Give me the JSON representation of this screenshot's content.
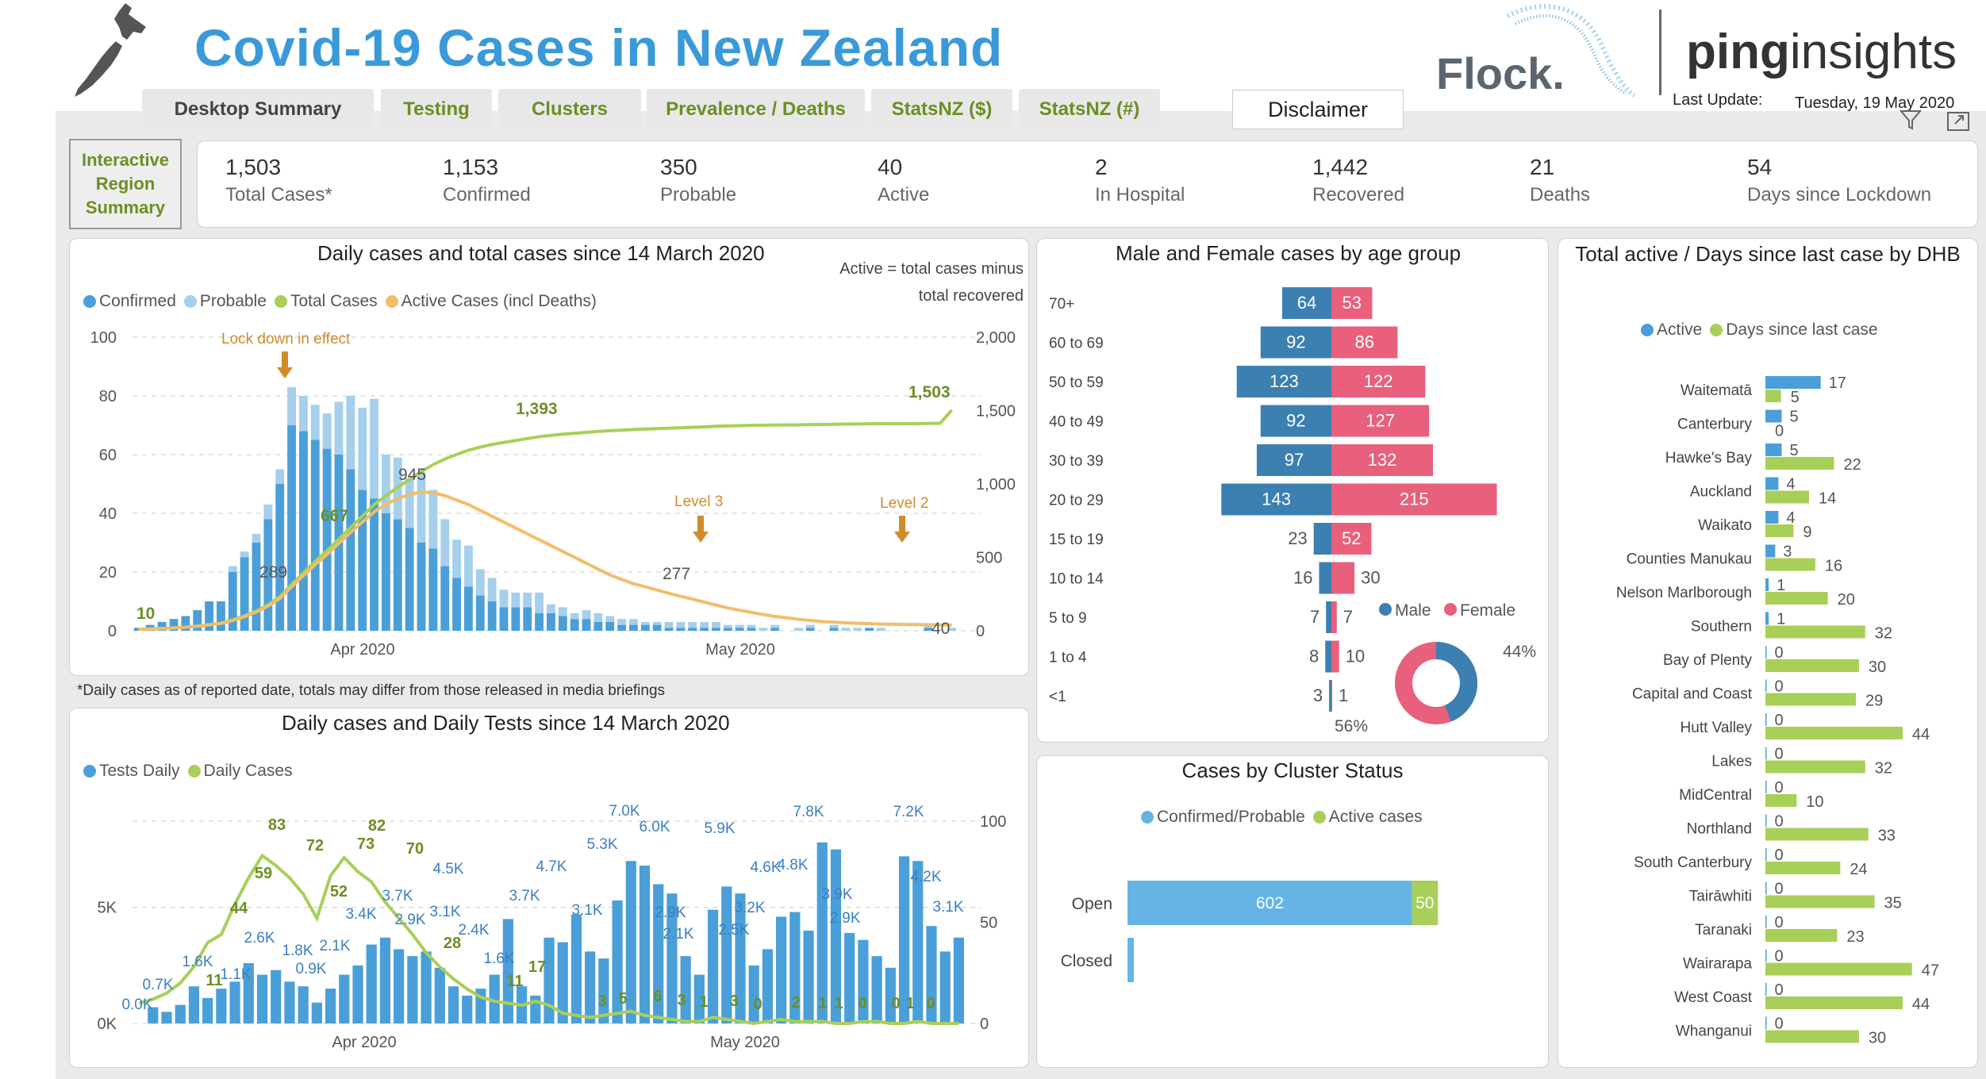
{
  "header": {
    "title": "Covid-19 Cases in New Zealand",
    "brand1": "Flock.",
    "brand2a": "ping",
    "brand2b": "insights",
    "last_update_label": "Last Update:",
    "last_update_value": "Tuesday, 19 May 2020"
  },
  "tabs": [
    {
      "label": "Desktop Summary"
    },
    {
      "label": "Testing"
    },
    {
      "label": "Clusters"
    },
    {
      "label": "Prevalence / Deaths"
    },
    {
      "label": "StatsNZ ($)"
    },
    {
      "label": "StatsNZ (#)"
    }
  ],
  "disclaimer_label": "Disclaimer",
  "interactive_region": {
    "line1": "Interactive",
    "line2": "Region",
    "line3": "Summary"
  },
  "kpis": [
    {
      "value": "1,503",
      "label": "Total Cases*"
    },
    {
      "value": "1,153",
      "label": "Confirmed"
    },
    {
      "value": "350",
      "label": "Probable"
    },
    {
      "value": "40",
      "label": "Active"
    },
    {
      "value": "2",
      "label": "In Hospital"
    },
    {
      "value": "1,442",
      "label": "Recovered"
    },
    {
      "value": "21",
      "label": "Deaths"
    },
    {
      "value": "54",
      "label": "Days since Lockdown"
    }
  ],
  "colors": {
    "confirmed": "#4a9fd8",
    "probable": "#a6cfec",
    "total": "#a8cf58",
    "active": "#f2bd6b",
    "male": "#3c7fb1",
    "female": "#e8607c",
    "annotation": "#d08b2a"
  },
  "chart_data": [
    {
      "type": "bar",
      "id": "daily_total",
      "title": "Daily cases and total cases since 14 March 2020",
      "note": "Active = total cases minus total recovered",
      "footnote": "*Daily cases as of reported date, totals may differ from those released in media briefings",
      "legend": [
        "Confirmed",
        "Probable",
        "Total Cases",
        "Active Cases (incl Deaths)"
      ],
      "x_ticks": [
        "Apr 2020",
        "May 2020"
      ],
      "y_left_ticks": [
        "100",
        "80",
        "60",
        "40",
        "20",
        "0"
      ],
      "y_right_ticks": [
        "2,000",
        "1,500",
        "1,000",
        "500",
        "0"
      ],
      "ylim_left": [
        0,
        100
      ],
      "ylim_right": [
        0,
        2000
      ],
      "annotations": [
        "Lock down in effect",
        "Level 3",
        "Level 2"
      ],
      "data_labels": {
        "total_start": "10",
        "total_289": "289",
        "total_667": "667",
        "active_945": "945",
        "total_1393": "1,393",
        "total_1503": "1,503",
        "active_277": "277",
        "active_40": "40"
      },
      "confirmed": [
        1,
        2,
        3,
        4,
        5,
        7,
        10,
        10,
        20,
        25,
        30,
        38,
        50,
        70,
        68,
        65,
        62,
        60,
        55,
        48,
        45,
        40,
        38,
        35,
        30,
        28,
        22,
        18,
        15,
        12,
        10,
        8,
        8,
        8,
        6,
        6,
        5,
        4,
        4,
        3,
        3,
        2,
        2,
        2,
        2,
        1,
        1,
        1,
        1,
        1,
        1,
        1,
        1,
        0,
        1,
        0,
        0,
        1,
        0,
        1,
        0,
        0,
        1,
        0,
        0,
        0,
        0,
        1,
        0,
        0
      ],
      "probable": [
        0,
        0,
        0,
        0,
        0,
        0,
        0,
        0,
        2,
        2,
        3,
        5,
        5,
        13,
        12,
        12,
        12,
        18,
        25,
        28,
        34,
        20,
        21,
        17,
        24,
        20,
        16,
        13,
        14,
        9,
        8,
        6,
        5,
        5,
        7,
        3,
        3,
        2,
        3,
        3,
        2,
        2,
        2,
        1,
        1,
        2,
        2,
        2,
        2,
        2,
        1,
        1,
        1,
        1,
        1,
        0,
        1,
        1,
        0,
        1,
        1,
        1,
        0,
        1,
        0,
        0,
        0,
        1,
        0,
        1
      ],
      "total_cumulative": [
        10,
        12,
        15,
        19,
        24,
        31,
        41,
        52,
        74,
        101,
        134,
        177,
        232,
        315,
        395,
        472,
        546,
        624,
        704,
        780,
        859,
        919,
        978,
        1030,
        1084,
        1132,
        1170,
        1201,
        1230,
        1251,
        1269,
        1283,
        1296,
        1309,
        1322,
        1331,
        1339,
        1345,
        1352,
        1358,
        1363,
        1367,
        1371,
        1374,
        1377,
        1380,
        1383,
        1386,
        1389,
        1393,
        1395,
        1397,
        1399,
        1400,
        1402,
        1402,
        1403,
        1405,
        1405,
        1407,
        1408,
        1409,
        1410,
        1411,
        1411,
        1411,
        1411,
        1413,
        1413,
        1503
      ],
      "active": [
        10,
        12,
        15,
        19,
        24,
        31,
        41,
        50,
        70,
        95,
        127,
        168,
        220,
        300,
        376,
        450,
        520,
        595,
        670,
        740,
        810,
        862,
        900,
        929,
        945,
        940,
        920,
        890,
        860,
        820,
        780,
        740,
        700,
        660,
        620,
        580,
        540,
        500,
        460,
        420,
        380,
        350,
        320,
        300,
        277,
        255,
        235,
        215,
        195,
        175,
        155,
        140,
        125,
        110,
        98,
        88,
        78,
        70,
        63,
        58,
        54,
        51,
        48,
        46,
        44,
        43,
        42,
        41,
        40,
        40
      ]
    },
    {
      "type": "bar",
      "id": "age_sex",
      "title": "Male and Female cases by age group",
      "legend": [
        "Male",
        "Female"
      ],
      "categories": [
        "70+",
        "60 to 69",
        "50 to 59",
        "40 to 49",
        "30 to 39",
        "20 to 29",
        "15 to 19",
        "10 to 14",
        "5 to 9",
        "1 to 4",
        "<1"
      ],
      "male": [
        64,
        92,
        123,
        92,
        97,
        143,
        23,
        16,
        7,
        8,
        3
      ],
      "female": [
        53,
        86,
        122,
        127,
        132,
        215,
        52,
        30,
        7,
        10,
        1
      ],
      "donut": {
        "male_pct": "44%",
        "female_pct": "56%",
        "male": 44,
        "female": 56
      }
    },
    {
      "type": "bar",
      "id": "dhb",
      "title": "Total active / Days since last case by DHB",
      "legend": [
        "Active",
        "Days since last case"
      ],
      "categories": [
        "Waitematā",
        "Canterbury",
        "Hawke's Bay",
        "Auckland",
        "Waikato",
        "Counties Manukau",
        "Nelson Marlborough",
        "Southern",
        "Bay of Plenty",
        "Capital and Coast",
        "Hutt Valley",
        "Lakes",
        "MidCentral",
        "Northland",
        "South Canterbury",
        "Tairāwhiti",
        "Taranaki",
        "Wairarapa",
        "West Coast",
        "Whanganui"
      ],
      "active": [
        17,
        5,
        5,
        4,
        4,
        3,
        1,
        1,
        0,
        0,
        0,
        0,
        0,
        0,
        0,
        0,
        0,
        0,
        0,
        0
      ],
      "days": [
        5,
        0,
        22,
        14,
        9,
        16,
        20,
        32,
        30,
        29,
        44,
        32,
        10,
        33,
        24,
        35,
        23,
        47,
        44,
        30
      ]
    },
    {
      "type": "bar",
      "id": "tests",
      "title": "Daily cases and Daily Tests since 14 March 2020",
      "legend": [
        "Tests Daily",
        "Daily Cases"
      ],
      "x_ticks": [
        "Apr 2020",
        "May 2020"
      ],
      "y_left_ticks": [
        "5K",
        "0K"
      ],
      "y_right_ticks": [
        "100",
        "50",
        "0"
      ],
      "test_labels": [
        "0.0K",
        "0.7K",
        "1.6K",
        "1.1K",
        "2.6K",
        "1.8K",
        "0.9K",
        "2.1K",
        "3.4K",
        "3.7K",
        "2.9K",
        "3.1K",
        "2.4K",
        "4.5K",
        "1.6K",
        "3.7K",
        "4.7K",
        "3.1K",
        "5.3K",
        "7.0K",
        "6.0K",
        "2.9K",
        "2.1K",
        "5.9K",
        "2.5K",
        "3.2K",
        "4.6K",
        "4.8K",
        "7.8K",
        "3.9K",
        "2.9K",
        "7.2K",
        "4.2K",
        "3.1K"
      ],
      "case_labels": [
        "83",
        "72",
        "73",
        "82",
        "70",
        "59",
        "52",
        "44",
        "28",
        "11",
        "17",
        "11",
        "3",
        "5",
        "6",
        "3",
        "1",
        "3",
        "0",
        "2",
        "1",
        "1",
        "0",
        "0",
        "1",
        "0"
      ],
      "tests": [
        0.0,
        0.7,
        0.5,
        0.8,
        1.6,
        1.1,
        1.5,
        1.8,
        2.6,
        2.1,
        2.3,
        1.8,
        1.6,
        0.9,
        1.5,
        2.1,
        2.5,
        3.4,
        3.7,
        3.2,
        2.9,
        3.1,
        2.4,
        1.6,
        1.2,
        1.5,
        2.1,
        4.5,
        1.6,
        1.2,
        3.7,
        3.5,
        4.7,
        3.1,
        2.8,
        5.3,
        7.0,
        6.8,
        6.0,
        5.6,
        2.9,
        2.1,
        4.9,
        5.9,
        5.6,
        2.5,
        3.2,
        4.6,
        4.8,
        4.0,
        7.8,
        7.5,
        3.9,
        3.6,
        2.9,
        2.4,
        7.2,
        7.0,
        4.2,
        3.1,
        3.7
      ],
      "cases": [
        10,
        12,
        15,
        20,
        28,
        40,
        44,
        59,
        72,
        83,
        78,
        72,
        64,
        52,
        73,
        82,
        75,
        70,
        60,
        52,
        44,
        35,
        28,
        22,
        17,
        13,
        11,
        10,
        9,
        11,
        9,
        5,
        4,
        3,
        4,
        5,
        6,
        4,
        3,
        2,
        1,
        1,
        3,
        2,
        1,
        0,
        1,
        2,
        1,
        1,
        1,
        0,
        0,
        1,
        1,
        0,
        0,
        1,
        0,
        0,
        0
      ]
    },
    {
      "type": "bar",
      "id": "cluster",
      "title": "Cases by Cluster Status",
      "legend": [
        "Confirmed/Probable",
        "Active cases"
      ],
      "categories": [
        "Open",
        "Closed"
      ],
      "confirmed_probable": [
        602,
        20
      ],
      "active": [
        50,
        0
      ],
      "labels": {
        "open_cp": "602",
        "open_active": "50"
      }
    }
  ]
}
